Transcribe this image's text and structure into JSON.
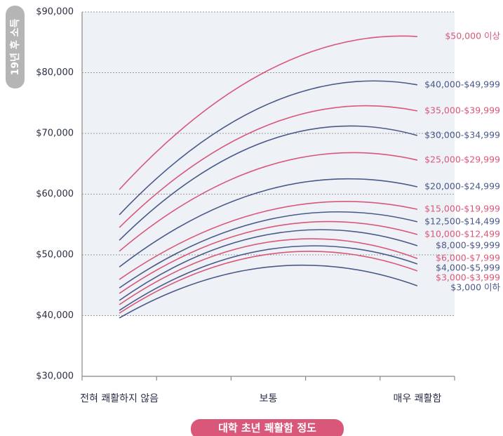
{
  "chart_data": {
    "type": "line",
    "xlabel": "대학 초년 쾌활함 정도",
    "ylabel": "19년 후 소득",
    "categories": [
      "전혀 쾌활하지 않음",
      "보통",
      "매우 쾌활함"
    ],
    "ylim": [
      30000,
      90000
    ],
    "yticks": [
      {
        "value": 30000,
        "label": "$30,000"
      },
      {
        "value": 40000,
        "label": "$40,000"
      },
      {
        "value": 50000,
        "label": "$50,000"
      },
      {
        "value": 60000,
        "label": "$60,000"
      },
      {
        "value": 70000,
        "label": "$70,000"
      },
      {
        "value": 80000,
        "label": "$80,000"
      },
      {
        "value": 90000,
        "label": "$90,000"
      }
    ],
    "grid": true,
    "series": [
      {
        "name": "$50,000 이상",
        "color": "#d9587a",
        "values": [
          60750,
          80400,
          85950
        ]
      },
      {
        "name": "$40,000-$49,999",
        "color": "#4a5a8a",
        "values": [
          56600,
          74850,
          78000
        ]
      },
      {
        "name": "$35,000-$39,999",
        "color": "#d9587a",
        "values": [
          54500,
          71400,
          73700
        ]
      },
      {
        "name": "$30,000-$34,999",
        "color": "#4a5a8a",
        "values": [
          52400,
          68850,
          69650
        ]
      },
      {
        "name": "$25,000-$29,999",
        "color": "#d9587a",
        "values": [
          50600,
          64700,
          65600
        ]
      },
      {
        "name": "$20,000-$24,999",
        "color": "#4a5a8a",
        "values": [
          48000,
          60750,
          61200
        ]
      },
      {
        "name": "$15,000-$19,999",
        "color": "#d9587a",
        "values": [
          45950,
          57300,
          57500
        ]
      },
      {
        "name": "$12,500-$14,499",
        "color": "#4a5a8a",
        "values": [
          44550,
          55800,
          55450
        ]
      },
      {
        "name": "$10,000-$12,499",
        "color": "#d9587a",
        "values": [
          43650,
          54500,
          53350
        ]
      },
      {
        "name": "$8,000-$9,999",
        "color": "#4a5a8a",
        "values": [
          42500,
          53350,
          51500
        ]
      },
      {
        "name": "$6,000-$7,999",
        "color": "#d9587a",
        "values": [
          41800,
          52100,
          49400
        ]
      },
      {
        "name": "$4,000-$5,999",
        "color": "#4a5a8a",
        "values": [
          40850,
          50900,
          48500
        ]
      },
      {
        "name": "$3,000-$3,999",
        "color": "#d9587a",
        "values": [
          40400,
          50100,
          47350
        ]
      },
      {
        "name": "$3,000 이하",
        "color": "#4a5a8a",
        "values": [
          39600,
          48000,
          44900
        ]
      }
    ]
  }
}
